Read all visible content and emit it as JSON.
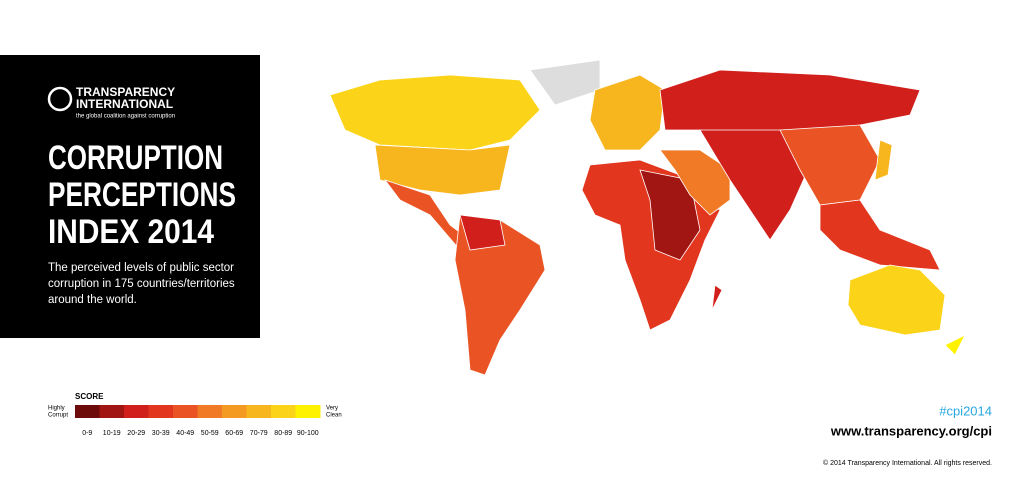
{
  "header": {
    "org_name_lines": [
      "TRANSPARENCY",
      "INTERNATIONAL"
    ],
    "tagline": "the global coalition against corruption"
  },
  "title_lines": [
    "CORRUPTION",
    "PERCEPTIONS",
    "INDEX 2014"
  ],
  "description_lines": [
    "The perceived levels of public sector",
    "corruption in 175 countries/territories",
    "around the world."
  ],
  "legend": {
    "title": "SCORE",
    "low_label": [
      "Highly",
      "Corrupt"
    ],
    "high_label": [
      "Very",
      "Clean"
    ],
    "ranges": [
      {
        "label": "0-9",
        "color": "#6d0a0a"
      },
      {
        "label": "10-19",
        "color": "#a11512"
      },
      {
        "label": "20-29",
        "color": "#d11f1b"
      },
      {
        "label": "30-39",
        "color": "#e2361f"
      },
      {
        "label": "40-49",
        "color": "#ea5424"
      },
      {
        "label": "50-59",
        "color": "#f07a25"
      },
      {
        "label": "60-69",
        "color": "#f49a23"
      },
      {
        "label": "70-79",
        "color": "#f7b51e"
      },
      {
        "label": "80-89",
        "color": "#fbd41a"
      },
      {
        "label": "90-100",
        "color": "#fff200"
      }
    ]
  },
  "hashtag": "#cpi2014",
  "url": "www.transparency.org/cpi",
  "copyright": "© 2014 Transparency International. All rights reserved."
}
